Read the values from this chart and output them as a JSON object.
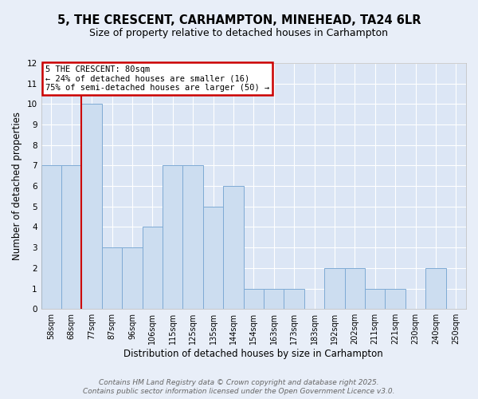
{
  "title": "5, THE CRESCENT, CARHAMPTON, MINEHEAD, TA24 6LR",
  "subtitle": "Size of property relative to detached houses in Carhampton",
  "xlabel": "Distribution of detached houses by size in Carhampton",
  "ylabel": "Number of detached properties",
  "categories": [
    "58sqm",
    "68sqm",
    "77sqm",
    "87sqm",
    "96sqm",
    "106sqm",
    "115sqm",
    "125sqm",
    "135sqm",
    "144sqm",
    "154sqm",
    "163sqm",
    "173sqm",
    "183sqm",
    "192sqm",
    "202sqm",
    "211sqm",
    "221sqm",
    "230sqm",
    "240sqm",
    "250sqm"
  ],
  "values": [
    7,
    7,
    10,
    3,
    3,
    4,
    7,
    7,
    5,
    6,
    1,
    1,
    1,
    0,
    2,
    2,
    1,
    1,
    0,
    2,
    0
  ],
  "bar_color": "#ccddf0",
  "bar_edge_color": "#7eaad4",
  "red_line_x": 1.5,
  "annotation_text": "5 THE CRESCENT: 80sqm\n← 24% of detached houses are smaller (16)\n75% of semi-detached houses are larger (50) →",
  "annotation_box_color": "#ffffff",
  "annotation_box_edge": "#cc0000",
  "ylim": [
    0,
    12
  ],
  "yticks": [
    0,
    1,
    2,
    3,
    4,
    5,
    6,
    7,
    8,
    9,
    10,
    11,
    12
  ],
  "footer1": "Contains HM Land Registry data © Crown copyright and database right 2025.",
  "footer2": "Contains public sector information licensed under the Open Government Licence v3.0.",
  "bg_color": "#e8eef8",
  "plot_bg": "#dce6f5",
  "grid_color": "#ffffff",
  "title_fontsize": 10.5,
  "subtitle_fontsize": 9,
  "tick_fontsize": 7,
  "label_fontsize": 8.5,
  "footer_fontsize": 6.5
}
